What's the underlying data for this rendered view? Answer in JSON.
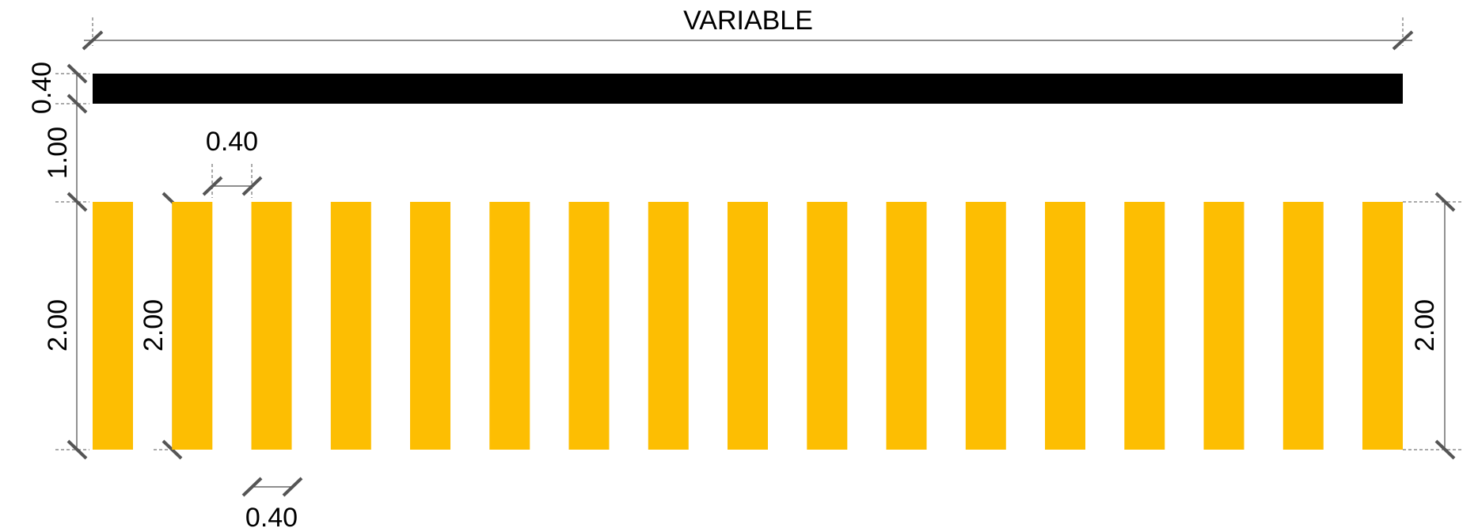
{
  "drawing": {
    "labels": {
      "total_length": "VARIABLE",
      "stop_line_width": "0.40",
      "gap_to_stripes": "1.00",
      "stripe_width": "0.40",
      "stripe_length_left": "2.00",
      "stripe_length_inner": "2.00",
      "stripe_length_right": "2.00",
      "stripe_gap": "0.40"
    },
    "colors": {
      "stop_line": "#000000",
      "stripe": "#FDBE02",
      "dimension": "#4a4a4a"
    },
    "stripe_count": 17
  }
}
